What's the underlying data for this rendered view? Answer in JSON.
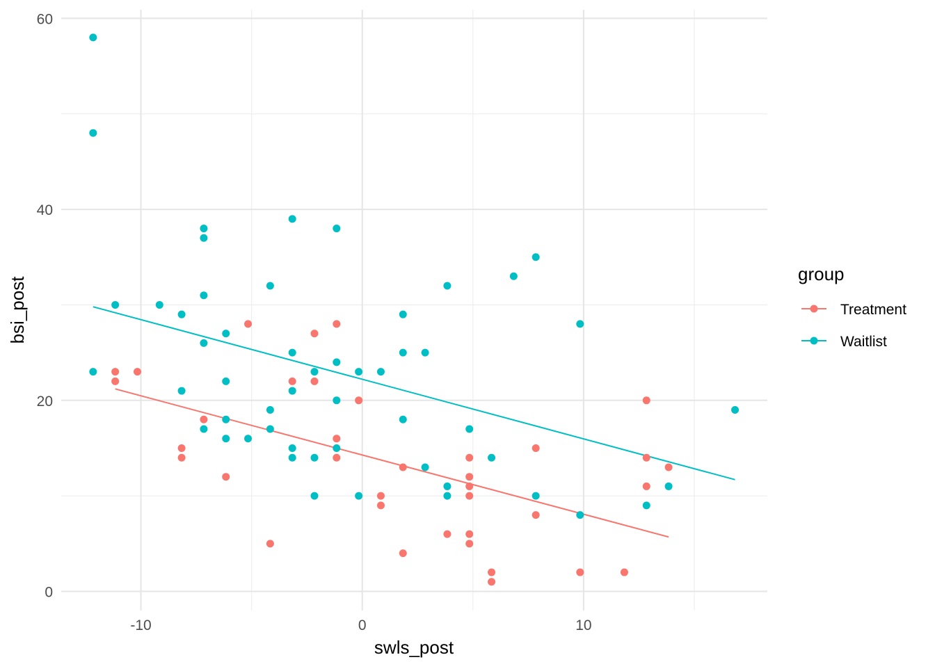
{
  "chart_data": {
    "type": "scatter",
    "title": "",
    "xlabel": "swls_post",
    "ylabel": "bsi_post",
    "xlim": [
      -13.6,
      18.3
    ],
    "ylim": [
      -2,
      60.9
    ],
    "x_ticks": [
      -10,
      0,
      10
    ],
    "x_minor": [
      -5,
      5,
      15
    ],
    "y_ticks": [
      0,
      20,
      40,
      60
    ],
    "y_minor": [
      10,
      30,
      50
    ],
    "grid": true,
    "legend": {
      "title": "group",
      "placement": "right"
    },
    "series": [
      {
        "name": "Treatment",
        "color": "#F8766D",
        "points": [
          [
            -11.16,
            23
          ],
          [
            -11.16,
            22
          ],
          [
            -10.16,
            23
          ],
          [
            -8.16,
            15
          ],
          [
            -8.16,
            14
          ],
          [
            -7.16,
            18
          ],
          [
            -6.16,
            12
          ],
          [
            -5.16,
            28
          ],
          [
            -4.16,
            5
          ],
          [
            -3.16,
            22
          ],
          [
            -2.16,
            27
          ],
          [
            -2.16,
            22
          ],
          [
            -1.16,
            28
          ],
          [
            -1.16,
            16
          ],
          [
            -1.16,
            14
          ],
          [
            -0.16,
            20
          ],
          [
            0.84,
            10
          ],
          [
            0.84,
            9
          ],
          [
            1.84,
            13
          ],
          [
            1.84,
            4
          ],
          [
            3.84,
            6
          ],
          [
            4.84,
            14
          ],
          [
            4.84,
            12
          ],
          [
            4.84,
            11
          ],
          [
            4.84,
            10
          ],
          [
            4.84,
            6
          ],
          [
            4.84,
            5
          ],
          [
            5.84,
            2
          ],
          [
            5.84,
            1
          ],
          [
            7.84,
            15
          ],
          [
            7.84,
            8
          ],
          [
            9.84,
            2
          ],
          [
            11.84,
            2
          ],
          [
            12.84,
            20
          ],
          [
            12.84,
            14
          ],
          [
            12.84,
            11
          ],
          [
            13.84,
            13
          ]
        ],
        "fit_line": [
          [
            -11.16,
            21.2
          ],
          [
            13.84,
            5.7
          ]
        ]
      },
      {
        "name": "Waitlist",
        "color": "#00BFC4",
        "points": [
          [
            -12.16,
            58
          ],
          [
            -12.16,
            48
          ],
          [
            -12.16,
            23
          ],
          [
            -11.16,
            30
          ],
          [
            -9.16,
            30
          ],
          [
            -8.16,
            29
          ],
          [
            -8.16,
            21
          ],
          [
            -7.16,
            38
          ],
          [
            -7.16,
            37
          ],
          [
            -7.16,
            31
          ],
          [
            -7.16,
            26
          ],
          [
            -7.16,
            17
          ],
          [
            -6.16,
            27
          ],
          [
            -6.16,
            22
          ],
          [
            -6.16,
            18
          ],
          [
            -6.16,
            16
          ],
          [
            -5.16,
            16
          ],
          [
            -4.16,
            32
          ],
          [
            -4.16,
            19
          ],
          [
            -4.16,
            17
          ],
          [
            -3.16,
            39
          ],
          [
            -3.16,
            25
          ],
          [
            -3.16,
            21
          ],
          [
            -3.16,
            15
          ],
          [
            -3.16,
            14
          ],
          [
            -2.16,
            23
          ],
          [
            -2.16,
            14
          ],
          [
            -2.16,
            10
          ],
          [
            -1.16,
            38
          ],
          [
            -1.16,
            24
          ],
          [
            -1.16,
            20
          ],
          [
            -1.16,
            15
          ],
          [
            -0.16,
            23
          ],
          [
            -0.16,
            10
          ],
          [
            0.84,
            23
          ],
          [
            1.84,
            29
          ],
          [
            1.84,
            25
          ],
          [
            1.84,
            18
          ],
          [
            2.84,
            25
          ],
          [
            2.84,
            13
          ],
          [
            3.84,
            32
          ],
          [
            3.84,
            11
          ],
          [
            3.84,
            10
          ],
          [
            4.84,
            17
          ],
          [
            5.84,
            14
          ],
          [
            6.84,
            33
          ],
          [
            7.84,
            35
          ],
          [
            7.84,
            10
          ],
          [
            9.84,
            28
          ],
          [
            9.84,
            8
          ],
          [
            12.84,
            9
          ],
          [
            13.84,
            11
          ],
          [
            16.84,
            19
          ]
        ],
        "fit_line": [
          [
            -12.16,
            29.8
          ],
          [
            16.84,
            11.7
          ]
        ]
      }
    ]
  }
}
